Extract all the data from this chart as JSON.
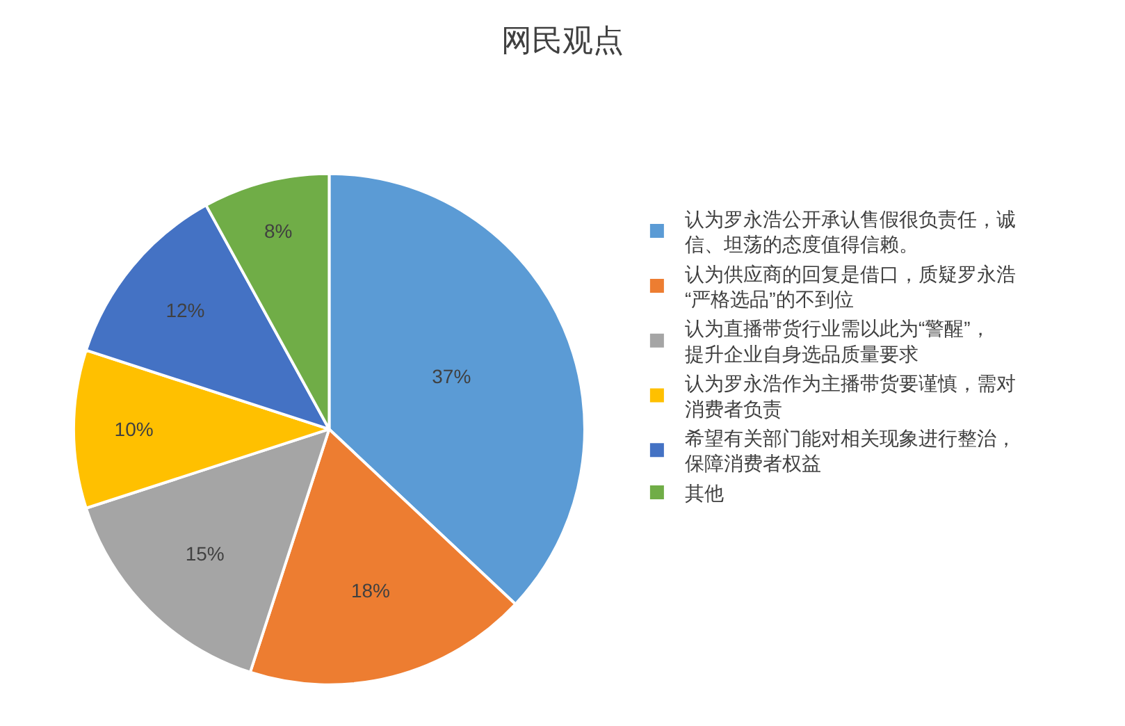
{
  "chart_data": {
    "type": "pie",
    "title": "网民观点",
    "categories": [
      "认为罗永浩公开承认售假很负责任，诚信、坦荡的态度值得信赖。",
      "认为供应商的回复是借口，质疑罗永浩“严格选品”的不到位",
      "认为直播带货行业需以此为“警醒”，提升企业自身选品质量要求",
      "认为罗永浩作为主播带货要谨慎，需对消费者负责",
      "希望有关部门能对相关现象进行整治，保障消费者权益",
      "其他"
    ],
    "values": [
      37,
      18,
      15,
      10,
      12,
      8
    ],
    "value_labels": [
      "37%",
      "18%",
      "15%",
      "10%",
      "12%",
      "8%"
    ],
    "colors": [
      "#5b9bd5",
      "#ed7d31",
      "#a5a5a5",
      "#ffc000",
      "#4472c4",
      "#70ad47"
    ],
    "legend": "right"
  }
}
